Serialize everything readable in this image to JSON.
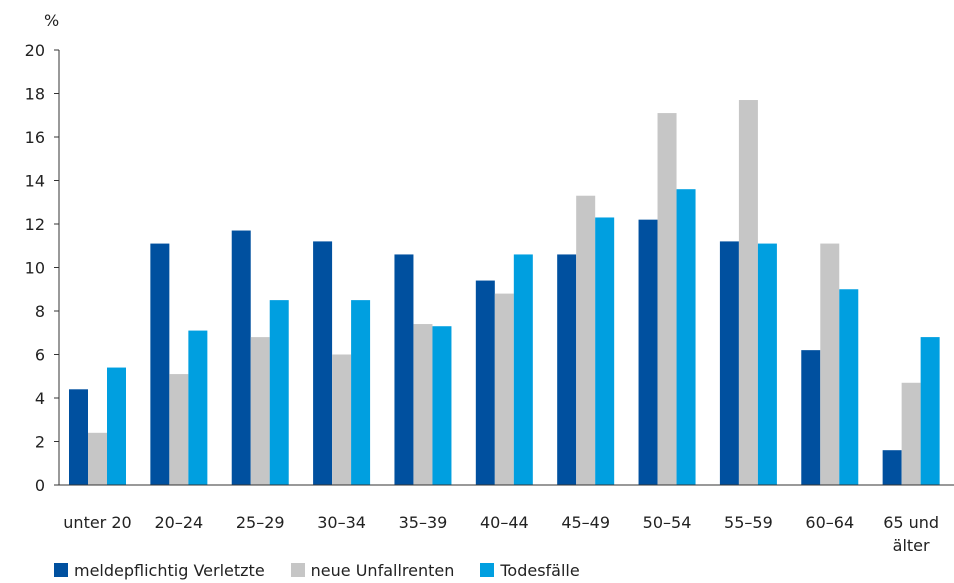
{
  "chart_data": {
    "type": "bar",
    "ylabel": "%",
    "ylim": [
      0,
      20
    ],
    "yticks": [
      0,
      2,
      4,
      6,
      8,
      10,
      12,
      14,
      16,
      18,
      20
    ],
    "categories": [
      "unter 20",
      "20–24",
      "25–29",
      "30–34",
      "35–39",
      "40–44",
      "45–49",
      "50–54",
      "55–59",
      "60–64",
      "65 und älter"
    ],
    "series": [
      {
        "name": "meldepflichtig Verletzte",
        "color": "#00509f",
        "values": [
          4.4,
          11.1,
          11.7,
          11.2,
          10.6,
          9.4,
          10.6,
          12.2,
          11.2,
          6.2,
          1.6
        ]
      },
      {
        "name": "neue Unfallrenten",
        "color": "#c6c6c6",
        "values": [
          2.4,
          5.1,
          6.8,
          6.0,
          7.4,
          8.8,
          13.3,
          17.1,
          17.7,
          11.1,
          4.7
        ]
      },
      {
        "name": "Todesfälle",
        "color": "#009fe0",
        "values": [
          5.4,
          7.1,
          8.5,
          8.5,
          7.3,
          10.6,
          12.3,
          13.6,
          11.1,
          9.0,
          6.8
        ]
      }
    ],
    "grid": false,
    "legend_position": "bottom-left"
  }
}
